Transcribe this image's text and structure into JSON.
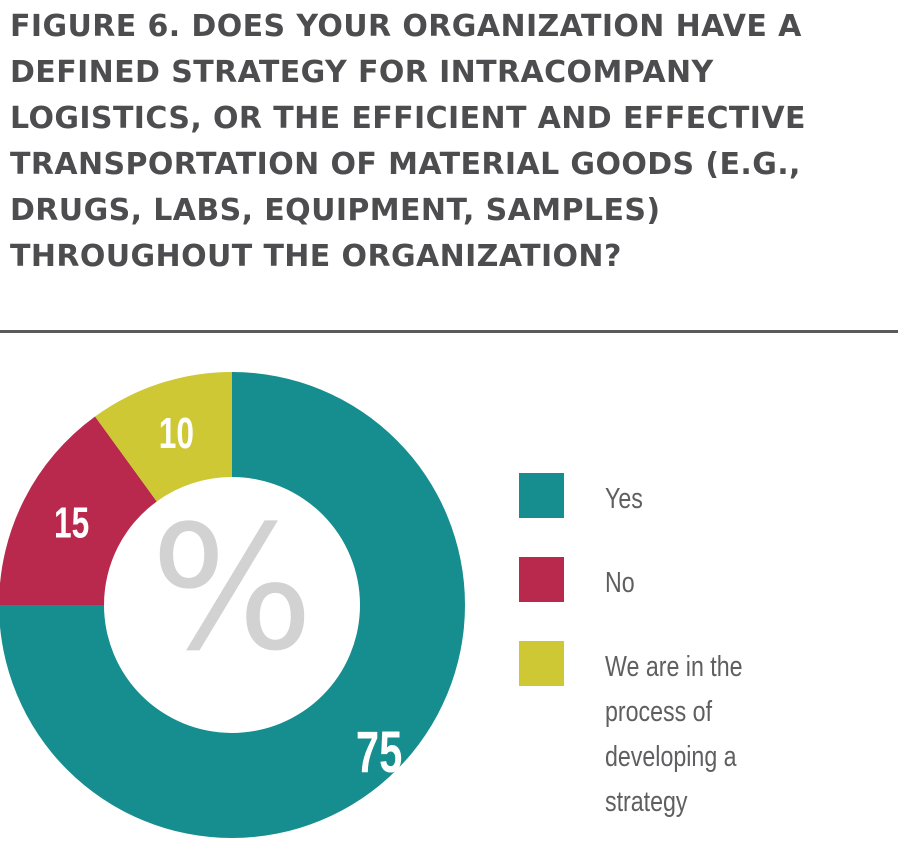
{
  "title": "FIGURE 6. DOES YOUR ORGANIZATION HAVE A DEFINED STRATEGY FOR INTRACOMPANY LOGISTICS, OR THE EFFICIENT AND EFFECTIVE TRANSPORTATION OF MATERIAL GOODS (E.G., DRUGS, LABS, EQUIPMENT, SAMPLES) THROUGHOUT THE ORGANIZATION?",
  "center_symbol": "%",
  "chart_data": {
    "type": "pie",
    "style": "donut",
    "unit": "%",
    "categories": [
      "Yes",
      "No",
      "We are in the process of developing a strategy"
    ],
    "values": [
      75,
      15,
      10
    ],
    "colors": [
      "#168d8e",
      "#b8294d",
      "#cdc834"
    ],
    "data_labels": [
      "75",
      "15",
      "10"
    ],
    "start": "12 o'clock, clockwise",
    "legend_position": "right"
  }
}
